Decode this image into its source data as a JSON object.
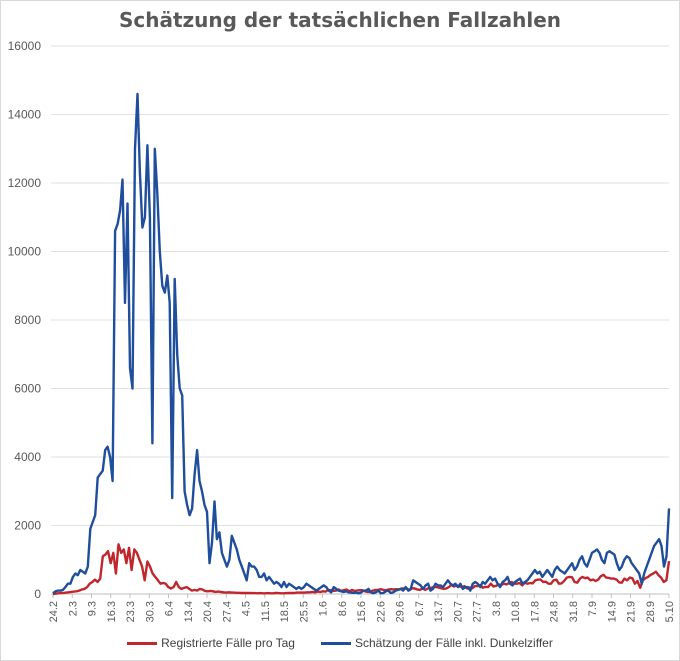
{
  "chart_data": {
    "type": "line",
    "title": "Schätzung der tatsächlichen Fallzahlen",
    "xlabel": "",
    "ylabel": "",
    "ylim": [
      0,
      16000
    ],
    "yticks": [
      0,
      2000,
      4000,
      6000,
      8000,
      10000,
      12000,
      14000,
      16000
    ],
    "grid": true,
    "legend_position": "bottom",
    "x_start": "24.2.",
    "x_end": "5.10.",
    "x_tick_labels": [
      "24.2",
      "2.3",
      "9.3",
      "16.3",
      "23.3",
      "30.3",
      "6.4",
      "13.4",
      "20.4",
      "27.4",
      "4.5",
      "11.5",
      "18.5",
      "25.5",
      "1.6",
      "8.6",
      "15.6",
      "22.6",
      "29.6",
      "6.7",
      "13.7",
      "20.7",
      "27.7",
      "3.8",
      "10.8",
      "17.8",
      "24.8",
      "31.8",
      "7.9",
      "14.9",
      "21.9",
      "28.9",
      "5.10"
    ],
    "series": [
      {
        "name": "Registrierte Fälle pro Tag",
        "color": "#c0272d",
        "values": [
          0,
          10,
          20,
          30,
          30,
          40,
          50,
          60,
          70,
          80,
          100,
          130,
          150,
          200,
          300,
          350,
          420,
          350,
          450,
          1100,
          1150,
          1250,
          900,
          1200,
          600,
          1450,
          1200,
          1300,
          900,
          1350,
          700,
          1300,
          1200,
          1000,
          800,
          400,
          950,
          800,
          600,
          500,
          400,
          300,
          320,
          300,
          200,
          160,
          200,
          350,
          200,
          150,
          180,
          200,
          150,
          100,
          120,
          100,
          150,
          130,
          90,
          80,
          90,
          80,
          60,
          70,
          60,
          50,
          40,
          50,
          45,
          40,
          35,
          35,
          30,
          30,
          30,
          30,
          25,
          25,
          20,
          25,
          20,
          20,
          25,
          20,
          20,
          30,
          25,
          20,
          20,
          25,
          30,
          30,
          30,
          40,
          40,
          40,
          40,
          50,
          50,
          60,
          50,
          70,
          60,
          80,
          70,
          120,
          110,
          90,
          100,
          130,
          90,
          110,
          130,
          80,
          120,
          90,
          100,
          110,
          110,
          80,
          60,
          60,
          100,
          120,
          120,
          140,
          120,
          110,
          130,
          140,
          130,
          140,
          130,
          160,
          160,
          160,
          110,
          170,
          160,
          130,
          120,
          170,
          120,
          160,
          170,
          200,
          200,
          190,
          170,
          150,
          160,
          200,
          260,
          220,
          250,
          220,
          200,
          230,
          160,
          190,
          170,
          230,
          230,
          260,
          180,
          210,
          200,
          300,
          220,
          240,
          280,
          260,
          300,
          280,
          320,
          350,
          300,
          300,
          320,
          250,
          330,
          300,
          320,
          310,
          400,
          420,
          420,
          350,
          360,
          300,
          300,
          400,
          420,
          300,
          310,
          380,
          480,
          500,
          490,
          350,
          330,
          450,
          500,
          460,
          480,
          400,
          420,
          380,
          420,
          520,
          560,
          480,
          470,
          450,
          450,
          420,
          340,
          330,
          450,
          400,
          480,
          460,
          300,
          380,
          180,
          400,
          460,
          500,
          560,
          600,
          650,
          550,
          480,
          350,
          400,
          960
        ]
      },
      {
        "name": "Schätzung der Fälle inkl. Dunkelziffer",
        "color": "#1f4e9c",
        "values": [
          20,
          80,
          100,
          100,
          120,
          200,
          300,
          300,
          500,
          600,
          550,
          700,
          650,
          600,
          800,
          1900,
          2100,
          2300,
          3400,
          3500,
          3600,
          4200,
          4300,
          4000,
          3300,
          10600,
          10800,
          11200,
          12100,
          8500,
          11400,
          6600,
          6000,
          13000,
          14600,
          12300,
          10700,
          11000,
          13100,
          11000,
          4400,
          13000,
          11700,
          10000,
          9000,
          8800,
          9300,
          8500,
          2800,
          9200,
          7000,
          6000,
          5800,
          3000,
          2600,
          2300,
          2500,
          3500,
          4200,
          3300,
          3000,
          2600,
          2400,
          900,
          1500,
          2700,
          1600,
          1800,
          1200,
          1000,
          800,
          1000,
          1700,
          1500,
          1300,
          1000,
          800,
          600,
          400,
          900,
          800,
          800,
          700,
          500,
          500,
          600,
          400,
          500,
          400,
          300,
          350,
          300,
          200,
          350,
          200,
          300,
          250,
          200,
          150,
          200,
          150,
          200,
          300,
          250,
          200,
          150,
          100,
          150,
          200,
          250,
          200,
          100,
          50,
          200,
          150,
          100,
          80,
          60,
          80,
          50,
          40,
          30,
          40,
          20,
          40,
          100,
          100,
          150,
          50,
          20,
          50,
          100,
          20,
          30,
          80,
          100,
          30,
          50,
          100,
          120,
          150,
          100,
          200,
          100,
          150,
          400,
          350,
          300,
          250,
          150,
          250,
          300,
          100,
          150,
          300,
          250,
          250,
          200,
          300,
          400,
          300,
          250,
          300,
          200,
          300,
          150,
          200,
          200,
          100,
          300,
          350,
          300,
          200,
          350,
          300,
          400,
          500,
          400,
          450,
          300,
          200,
          350,
          400,
          500,
          300,
          250,
          350,
          400,
          450,
          300,
          350,
          400,
          500,
          600,
          700,
          600,
          650,
          500,
          600,
          700,
          600,
          500,
          700,
          800,
          700,
          650,
          600,
          700,
          800,
          900,
          700,
          800,
          1000,
          1100,
          900,
          800,
          1000,
          1200,
          1250,
          1300,
          1200,
          1000,
          900,
          1200,
          1250,
          1200,
          1150,
          900,
          700,
          800,
          1000,
          1100,
          1050,
          900,
          800,
          700,
          600,
          300,
          600,
          800,
          1000,
          1200,
          1400,
          1500,
          1600,
          1400,
          800,
          1100,
          2500
        ]
      }
    ]
  }
}
